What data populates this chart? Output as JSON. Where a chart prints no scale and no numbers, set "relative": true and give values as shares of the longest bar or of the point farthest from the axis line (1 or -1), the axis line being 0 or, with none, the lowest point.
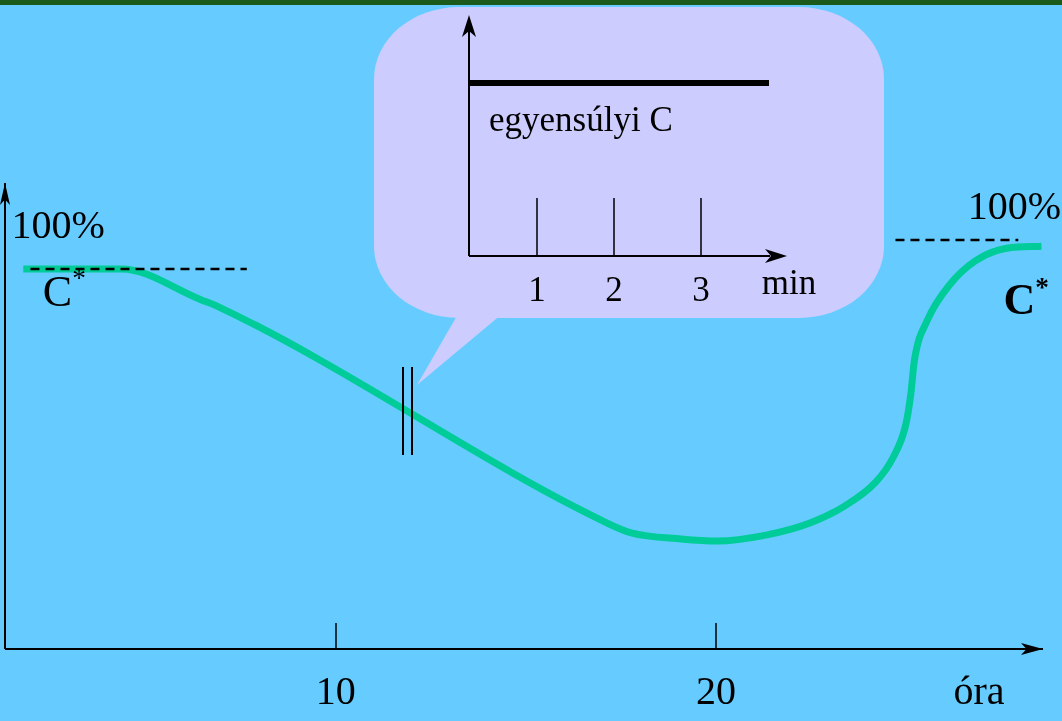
{
  "chart_data": {
    "type": "line",
    "xlabel": "óra",
    "relative": true,
    "xlim": [
      1.3,
      28.6
    ],
    "xticks": [
      10,
      20
    ],
    "tick_labels": "x",
    "series": [
      {
        "color": "#00cc99",
        "x": [
          1.78,
          4.36,
          6.48,
          6.82,
          16.98,
          17.77,
          19.08,
          20.05,
          21.34,
          22.47,
          23.39,
          24.2,
          24.65,
          24.99,
          25.12,
          25.22,
          25.56,
          26.14,
          26.82,
          27.64,
          28.56
        ],
        "values": [
          0.929,
          0.929,
          0.853,
          0.841,
          0.315,
          0.284,
          0.269,
          0.264,
          0.279,
          0.308,
          0.35,
          0.408,
          0.467,
          0.548,
          0.621,
          0.707,
          0.804,
          0.89,
          0.949,
          0.98,
          0.985
        ]
      },
      {
        "color": "#000000",
        "line_style": "dashed",
        "x": [
          1.97,
          7.66
        ],
        "values": [
          0.929,
          0.929
        ]
      },
      {
        "color": "#000000",
        "line_style": "dashed",
        "x": [
          24.72,
          27.95
        ],
        "values": [
          1,
          1
        ]
      }
    ],
    "annotations": [
      {
        "text": "100%",
        "x": 2.7,
        "y": 0.929
      },
      {
        "text": "C$^{*}$",
        "x": 2.86,
        "y": 0.929
      },
      {
        "text": "100%",
        "x": 27.85,
        "y": 1
      },
      {
        "text": "C$^{*}$",
        "x": 28.16,
        "y": 0.983
      },
      "egyensúlyi C",
      "1",
      "2",
      "3",
      "min"
    ]
  }
}
